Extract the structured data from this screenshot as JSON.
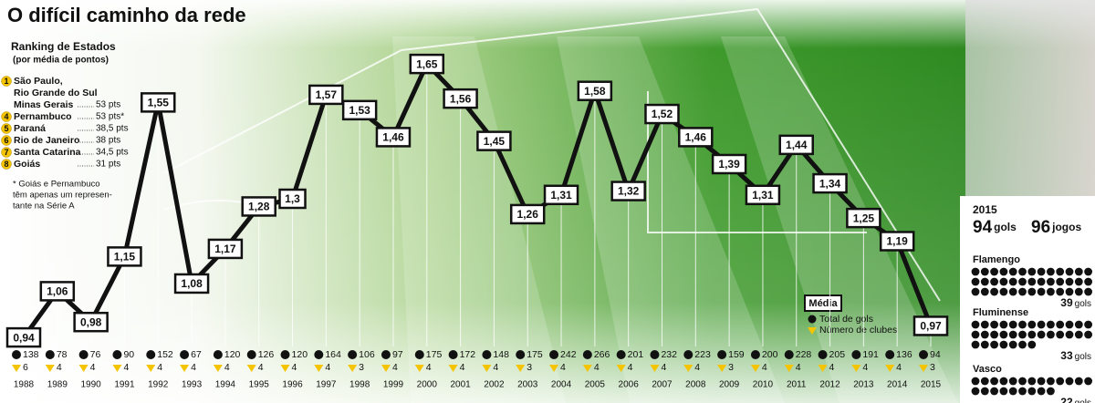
{
  "chart_data": {
    "type": "line",
    "title": "O difícil caminho da rede",
    "categories": [
      "1988",
      "1989",
      "1990",
      "1991",
      "1992",
      "1993",
      "1994",
      "1995",
      "1996",
      "1997",
      "1998",
      "1999",
      "2000",
      "2001",
      "2002",
      "2003",
      "2004",
      "2005",
      "2006",
      "2007",
      "2008",
      "2009",
      "2010",
      "2011",
      "2012",
      "2013",
      "2014",
      "2015"
    ],
    "series": [
      {
        "name": "Média",
        "color": "#111111",
        "values": [
          0.94,
          1.06,
          0.98,
          1.15,
          1.55,
          1.08,
          1.17,
          1.28,
          1.3,
          1.57,
          1.53,
          1.46,
          1.65,
          1.56,
          1.45,
          1.26,
          1.31,
          1.58,
          1.32,
          1.52,
          1.46,
          1.39,
          1.31,
          1.44,
          1.34,
          1.25,
          1.19,
          0.97
        ],
        "value_labels": [
          "0,94",
          "1,06",
          "0,98",
          "1,15",
          "1,55",
          "1,08",
          "1,17",
          "1,28",
          "1,3",
          "1,57",
          "1,53",
          "1,46",
          "1,65",
          "1,56",
          "1,45",
          "1,26",
          "1,31",
          "1,58",
          "1,32",
          "1,52",
          "1,46",
          "1,39",
          "1,31",
          "1,44",
          "1,34",
          "1,25",
          "1,19",
          "0,97"
        ]
      },
      {
        "name": "Total de gols",
        "color": "#111111",
        "values": [
          138,
          78,
          76,
          90,
          152,
          67,
          120,
          126,
          120,
          164,
          106,
          97,
          175,
          172,
          148,
          175,
          242,
          266,
          201,
          232,
          223,
          159,
          200,
          228,
          205,
          191,
          136,
          94
        ]
      },
      {
        "name": "Número de clubes",
        "color": "#f5c400",
        "values": [
          6,
          4,
          4,
          4,
          4,
          4,
          4,
          4,
          4,
          4,
          3,
          4,
          4,
          4,
          4,
          3,
          4,
          4,
          4,
          4,
          4,
          3,
          4,
          4,
          4,
          4,
          4,
          3
        ]
      }
    ],
    "ylim": [
      0.9,
      1.7
    ]
  },
  "ranking": {
    "title": "Ranking de Estados",
    "subtitle": "(por média de pontos)",
    "items": [
      {
        "rank": 1,
        "name": "São Paulo,"
      },
      {
        "name": "Rio Grande do Sul"
      },
      {
        "name": "Minas Gerais",
        "pts": "53 pts"
      },
      {
        "rank": 4,
        "name": "Pernambuco",
        "pts": "53 pts*"
      },
      {
        "rank": 5,
        "name": "Paraná",
        "pts": "38,5 pts"
      },
      {
        "rank": 6,
        "name": "Rio de Janeiro",
        "pts": "38 pts"
      },
      {
        "rank": 7,
        "name": "Santa Catarina",
        "pts": "34,5 pts"
      },
      {
        "rank": 8,
        "name": "Goiás",
        "pts": "31 pts"
      }
    ],
    "note": [
      "* Goiás e Pernambuco",
      "têm apenas um represen-",
      "tante na Série A"
    ]
  },
  "season": {
    "year": "2015",
    "goals": 94,
    "goals_unit": "gols",
    "games": 96,
    "games_unit": "jogos",
    "teams": [
      {
        "name": "Flamengo",
        "goals": 39,
        "unit": "gols"
      },
      {
        "name": "Fluminense",
        "goals": 33,
        "unit": "gols"
      },
      {
        "name": "Vasco",
        "goals": 22,
        "unit": "gols"
      }
    ]
  }
}
